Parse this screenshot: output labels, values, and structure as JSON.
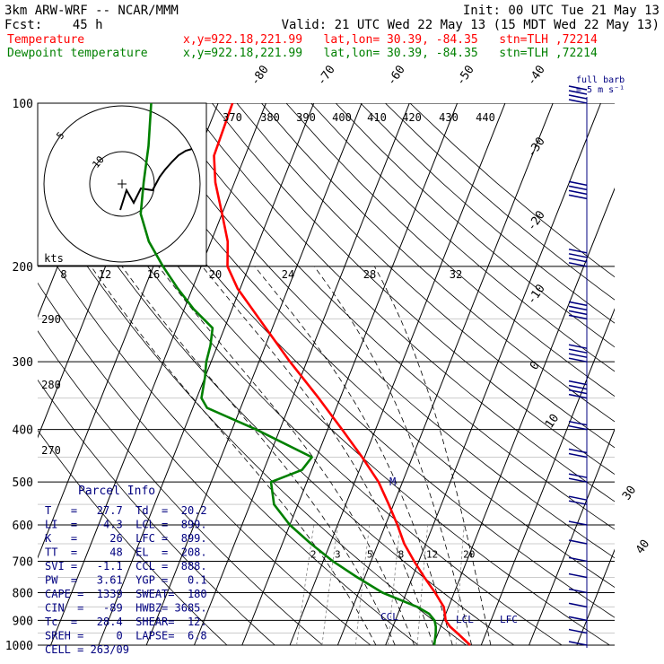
{
  "header": {
    "model": "3km ARW-WRF -- NCAR/MMM",
    "init": "Init: 00 UTC Tue 21 May 13",
    "fcst": "Fcst:    45 h",
    "valid": "Valid: 21 UTC Wed 22 May 13 (15 MDT Wed 22 May 13)",
    "temp_label": "Temperature",
    "temp_info": "x,y=922.18,221.99   lat,lon= 30.39, -84.35   stn=TLH ,72214",
    "dew_label": "Dewpoint temperature",
    "dew_info": "x,y=922.18,221.99   lat,lon= 30.39, -84.35   stn=TLH ,72214"
  },
  "colors": {
    "temperature": "#ff0000",
    "dewpoint": "#008000",
    "axes": "#000000",
    "parcel_box": "#000080",
    "wind": "#000080",
    "mixing_ratio_grid": "#808080"
  },
  "pressure_labels": [
    "100",
    "200",
    "300",
    "400",
    "500",
    "600",
    "700",
    "800",
    "900",
    "1000"
  ],
  "isotherm_labels": [
    "-80",
    "-70",
    "-60",
    "-50",
    "-40",
    "-30",
    "-20",
    "-10",
    "0",
    "10",
    "30",
    "40"
  ],
  "theta_labels": [
    "370",
    "380",
    "390",
    "400",
    "410",
    "420",
    "430",
    "440"
  ],
  "dry_adiabat_labels": [
    "290",
    "280",
    "270"
  ],
  "wind_scale_labels": [
    "kts",
    "8",
    "12",
    "16",
    "20",
    "24",
    "28",
    "32"
  ],
  "mixing_ratio_labels": [
    "2",
    "3",
    "5",
    "8",
    "12",
    "20"
  ],
  "hodograph_ring_labels": [
    "5",
    "10"
  ],
  "barb_note": [
    "full barb",
    "= 5 m s⁻¹"
  ],
  "markers": {
    "ccl": "CCL",
    "lcl": "LCL",
    "lfc": "LFC",
    "parcel_marker": "M"
  },
  "parcel_info": {
    "title": "Parcel Info",
    "rows": [
      "T   =   27.7  Td  =  20.2",
      "LI  =   -4.3  LCL =  899.",
      "K   =     26  LFC =  899.",
      "TT  =     48  EL  =  208.",
      "SVI =   -1.1  CCL =  888.",
      "PW  =   3.61  YGP =   0.1",
      "CAPE =  1339  SWEAT=  180",
      "CIN  =   -89  HWBZ= 3685.",
      "Tc  =   28.4  SHEAR=  12.",
      "SREH =     0  LAPSE=  6.8",
      "CELL = 263/09"
    ]
  },
  "chart_data": {
    "type": "line",
    "title": "",
    "xlabel": "",
    "ylabel": "",
    "y_scale": "log-pressure",
    "ylim": [
      1000,
      100
    ],
    "series": [
      {
        "name": "Temperature",
        "color": "#ff0000",
        "pressure": [
          1000,
          950,
          925,
          900,
          875,
          850,
          800,
          750,
          700,
          650,
          600,
          550,
          500,
          450,
          400,
          350,
          300,
          250,
          220,
          200,
          180,
          160,
          140,
          125,
          100
        ],
        "values": [
          27.7,
          24.0,
          22.0,
          20.5,
          19.8,
          19.0,
          16.0,
          12.5,
          9.0,
          5.5,
          2.5,
          -1.0,
          -5.0,
          -10.5,
          -17.0,
          -24.5,
          -33.5,
          -43.5,
          -50.5,
          -54.5,
          -56.5,
          -60.0,
          -64.0,
          -66.5,
          -67.0
        ]
      },
      {
        "name": "Dewpoint temperature",
        "color": "#008000",
        "pressure": [
          1000,
          950,
          925,
          900,
          875,
          850,
          800,
          750,
          700,
          650,
          600,
          550,
          500,
          475,
          450,
          400,
          365,
          350,
          320,
          300,
          280,
          260,
          240,
          220,
          200,
          180,
          160,
          140,
          120,
          100
        ],
        "values": [
          20.2,
          19.5,
          19.0,
          18.2,
          16.5,
          13.5,
          5.0,
          -1.5,
          -8.0,
          -14.0,
          -20.0,
          -25.0,
          -27.5,
          -22.0,
          -21.0,
          -35.0,
          -47.0,
          -49.0,
          -50.0,
          -51.0,
          -51.5,
          -52.5,
          -58.0,
          -63.0,
          -68.0,
          -73.0,
          -77.0,
          -79.0,
          -81.0,
          -84.0
        ]
      }
    ],
    "wind_kts": {
      "pressure": [
        1000,
        950,
        900,
        850,
        800,
        750,
        700,
        650,
        600,
        550,
        500,
        450,
        400,
        350,
        300,
        250,
        200,
        150,
        100
      ],
      "speed": [
        5,
        5,
        5,
        5,
        5,
        5,
        5,
        5,
        5,
        10,
        10,
        10,
        10,
        20,
        20,
        20,
        20,
        20,
        20
      ]
    }
  }
}
